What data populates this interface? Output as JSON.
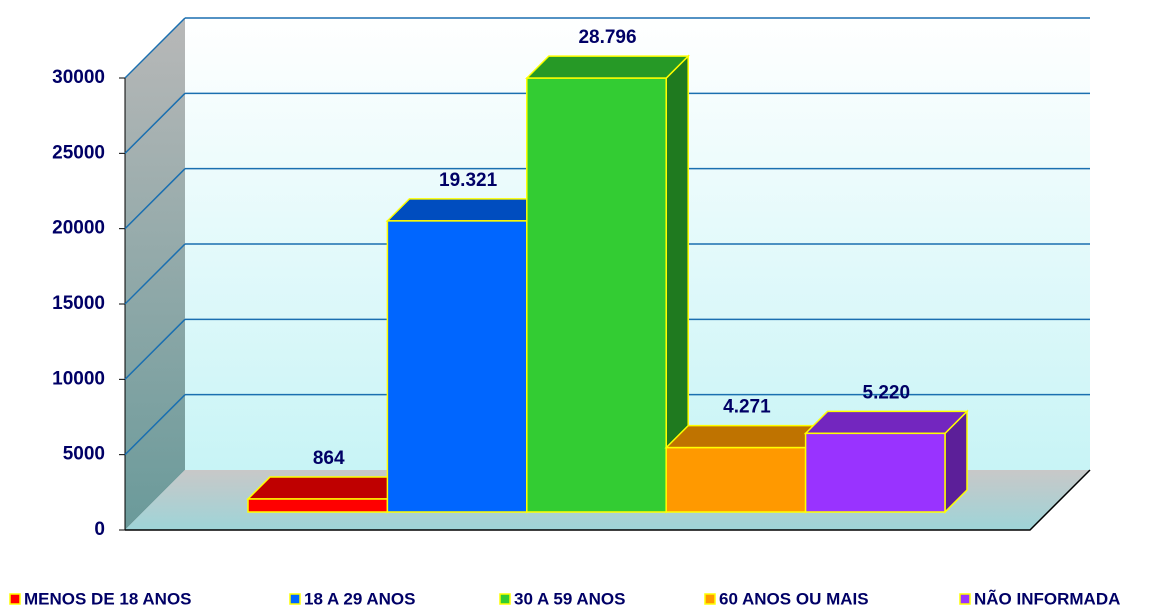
{
  "chart_data": {
    "type": "bar3d",
    "categories": [
      "MENOS DE 18 ANOS",
      "18 A 29 ANOS",
      "30 A 59 ANOS",
      "60 ANOS OU MAIS",
      "NÃO INFORMADA"
    ],
    "values": [
      864,
      19321,
      28796,
      4271,
      5220
    ],
    "value_labels": [
      "864",
      "19.321",
      "28.796",
      "4.271",
      "5.220"
    ],
    "colors": [
      "#ff0000",
      "#0066ff",
      "#33cc33",
      "#ff9900",
      "#9933ff"
    ],
    "ylim": [
      0,
      30000
    ],
    "yticks": [
      0,
      5000,
      10000,
      15000,
      20000,
      25000,
      30000
    ],
    "grid": true
  }
}
